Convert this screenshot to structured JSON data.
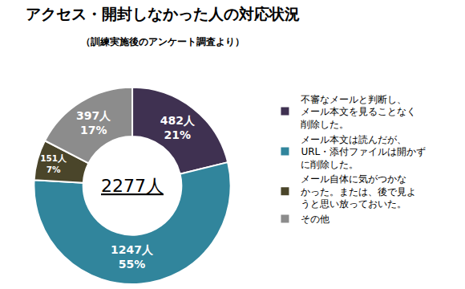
{
  "chart_data": {
    "type": "pie",
    "title": "アクセス・開封しなかった人の対応状況",
    "subtitle": "（訓練実施後のアンケート調査より）",
    "categories": [
      "不審なメールと判断し、\nメール本文を見ることなく\n削除した。",
      "メール本文は読んだが、\nURL・添付ファイルは開かず\nに削除した。",
      "メール自体に気がつかな\nかった。または、後で見よ\nうと思い放っておいた。",
      "その他"
    ],
    "values": [
      482,
      1247,
      151,
      397
    ],
    "value_labels": [
      "482人",
      "1247人",
      "151人",
      "397人"
    ],
    "percentages": [
      21,
      55,
      7,
      17
    ],
    "percentage_labels": [
      "21%",
      "55%",
      "7%",
      "17%"
    ],
    "total": 2277,
    "total_label": "2277人",
    "colors": [
      "#3f3151",
      "#31859c",
      "#4a452a",
      "#8c8c8c"
    ],
    "data_labels": true,
    "legend": "right"
  }
}
